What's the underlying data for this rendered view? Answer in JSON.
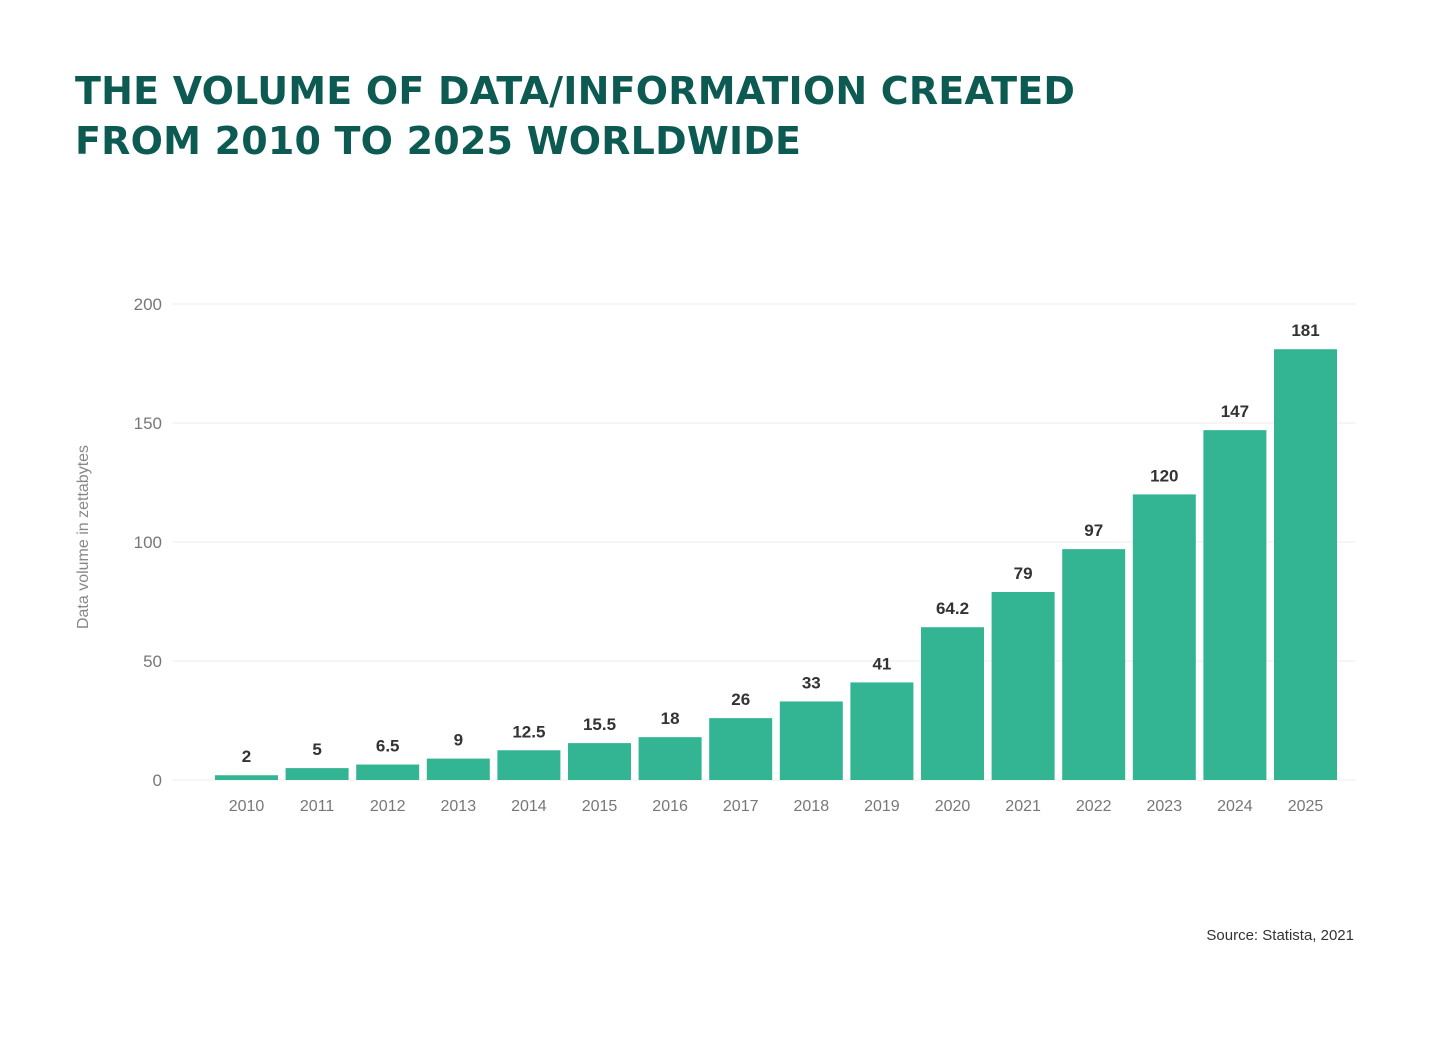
{
  "title_line1": "THE VOLUME OF DATA/INFORMATION CREATED",
  "title_line2": "FROM 2010 TO 2025 WORLDWIDE",
  "source": "Source: Statista, 2021",
  "colors": {
    "title": "#0c5a52",
    "bar": "#33b593",
    "grid": "#eeeeee",
    "tick": "#777777",
    "label": "#333333"
  },
  "chart_data": {
    "type": "bar",
    "categories": [
      "2010",
      "2011",
      "2012",
      "2013",
      "2014",
      "2015",
      "2016",
      "2017",
      "2018",
      "2019",
      "2020",
      "2021",
      "2022",
      "2023",
      "2024",
      "2025"
    ],
    "values": [
      2,
      5,
      6.5,
      9,
      12.5,
      15.5,
      18,
      26,
      33,
      41,
      64.2,
      79,
      97,
      120,
      147,
      181
    ],
    "value_labels": [
      "2",
      "5",
      "6.5",
      "9",
      "12.5",
      "15.5",
      "18",
      "26",
      "33",
      "41",
      "64.2",
      "79",
      "97",
      "120",
      "147",
      "181"
    ],
    "ylabel": "Data volume in zettabytes",
    "ylim": [
      0,
      200
    ],
    "yticks": [
      0,
      50,
      100,
      150,
      200
    ],
    "grid": true,
    "legend": "none"
  }
}
